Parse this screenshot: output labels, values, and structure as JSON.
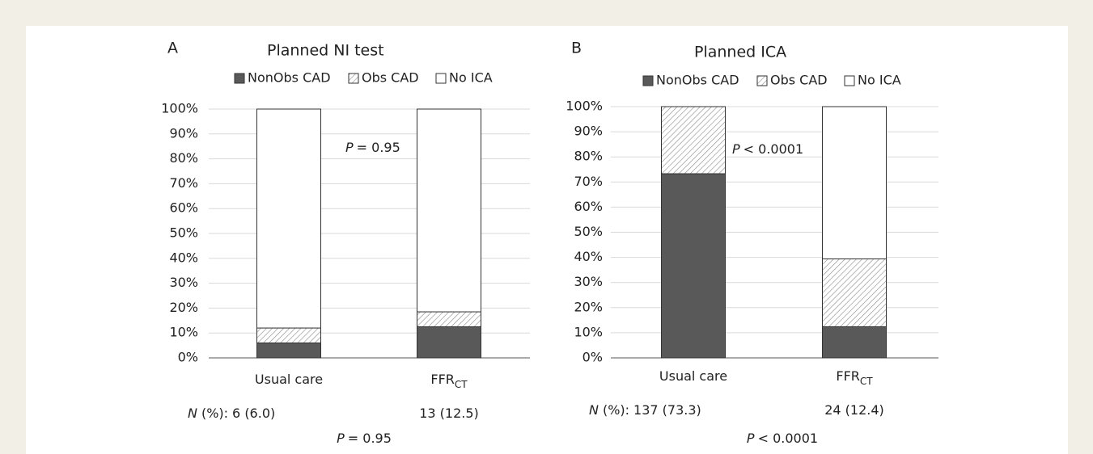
{
  "chart_data": [
    {
      "type": "stacked_bar",
      "panel_label": "A",
      "title": "Planned NI test",
      "categories": [
        "Usual care",
        "FFR"
      ],
      "category_subscripts": [
        null,
        "CT"
      ],
      "series": [
        {
          "name": "NonObs CAD",
          "color": "#595959",
          "values": [
            6,
            12.5
          ]
        },
        {
          "name": "Obs CAD",
          "color": "#ffffff",
          "pattern": "hatch",
          "values": [
            6,
            6
          ]
        },
        {
          "name": "No ICA",
          "color": "#ffffff",
          "values": [
            88,
            81.5
          ]
        }
      ],
      "ylim": [
        0,
        100
      ],
      "yticks": [
        {
          "value": 0,
          "label": "0%"
        },
        {
          "value": 10,
          "label": "10%"
        },
        {
          "value": 20,
          "label": "20%"
        },
        {
          "value": 30,
          "label": "30%"
        },
        {
          "value": 40,
          "label": "40%"
        },
        {
          "value": 50,
          "label": "50%"
        },
        {
          "value": 60,
          "label": "60%"
        },
        {
          "value": 70,
          "label": "70%"
        },
        {
          "value": 80,
          "label": "80%"
        },
        {
          "value": 90,
          "label": "90%"
        },
        {
          "value": 100,
          "label": "100%"
        }
      ],
      "grid": true,
      "legend": "top",
      "n_symbol": "N",
      "n_prefix": "(%):",
      "n_labels": [
        "6 (6.0)",
        "13 (12.5)"
      ],
      "p_symbol": "P",
      "p_value": "= 0.95"
    },
    {
      "type": "stacked_bar",
      "panel_label": "B",
      "title": "Planned ICA",
      "categories": [
        "Usual care",
        "FFR"
      ],
      "category_subscripts": [
        null,
        "CT"
      ],
      "series": [
        {
          "name": "NonObs CAD",
          "color": "#595959",
          "values": [
            73.3,
            12.4
          ]
        },
        {
          "name": "Obs CAD",
          "color": "#ffffff",
          "pattern": "hatch",
          "values": [
            26.7,
            27
          ]
        },
        {
          "name": "No ICA",
          "color": "#ffffff",
          "values": [
            0,
            60.6
          ]
        }
      ],
      "ylim": [
        0,
        100
      ],
      "yticks": [
        {
          "value": 0,
          "label": "0%"
        },
        {
          "value": 10,
          "label": "10%"
        },
        {
          "value": 20,
          "label": "20%"
        },
        {
          "value": 30,
          "label": "30%"
        },
        {
          "value": 40,
          "label": "40%"
        },
        {
          "value": 50,
          "label": "50%"
        },
        {
          "value": 60,
          "label": "60%"
        },
        {
          "value": 70,
          "label": "70%"
        },
        {
          "value": 80,
          "label": "80%"
        },
        {
          "value": 90,
          "label": "90%"
        },
        {
          "value": 100,
          "label": "100%"
        }
      ],
      "grid": true,
      "legend": "top",
      "n_symbol": "N",
      "n_prefix": "(%):",
      "n_labels": [
        "137 (73.3)",
        "24 (12.4)"
      ],
      "p_symbol": "P",
      "p_value": "< 0.0001"
    }
  ]
}
